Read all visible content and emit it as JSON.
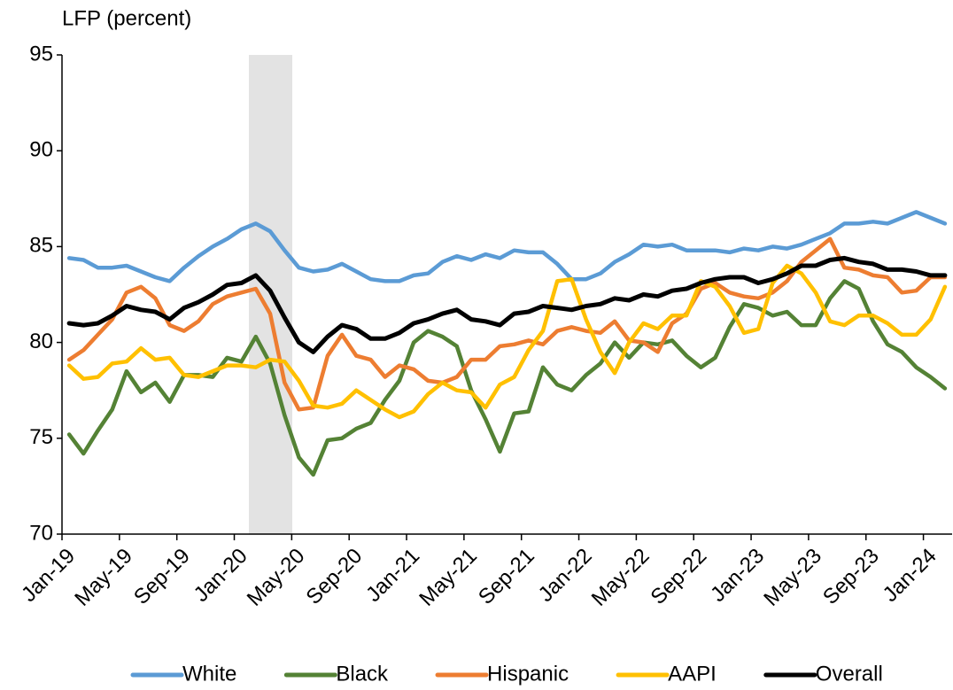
{
  "chart_data": {
    "type": "line",
    "title": "LFP (percent)",
    "categories": [
      "Jan-19",
      null,
      null,
      null,
      "May-19",
      null,
      null,
      null,
      "Sep-19",
      null,
      null,
      null,
      "Jan-20",
      null,
      null,
      null,
      "May-20",
      null,
      null,
      null,
      "Sep-20",
      null,
      null,
      null,
      "Jan-21",
      null,
      null,
      null,
      "May-21",
      null,
      null,
      null,
      "Sep-21",
      null,
      null,
      null,
      "Jan-22",
      null,
      null,
      null,
      "May-22",
      null,
      null,
      null,
      "Sep-22",
      null,
      null,
      null,
      "Jan-23",
      null,
      null,
      null,
      "May-23",
      null,
      null,
      null,
      "Sep-23",
      null,
      null,
      null,
      "Jan-24",
      null
    ],
    "ylim": [
      70,
      95
    ],
    "yticks": [
      70,
      75,
      80,
      85,
      90,
      95
    ],
    "grid": false,
    "legend": "bottom",
    "series": [
      {
        "name": "White",
        "color": "#5b9bd5",
        "values": [
          84.4,
          84.3,
          83.9,
          83.9,
          84.0,
          83.7,
          83.4,
          83.2,
          83.9,
          84.5,
          85.0,
          85.4,
          85.9,
          86.2,
          85.8,
          84.8,
          83.9,
          83.7,
          83.8,
          84.1,
          83.7,
          83.3,
          83.2,
          83.2,
          83.5,
          83.6,
          84.2,
          84.5,
          84.3,
          84.6,
          84.4,
          84.8,
          84.7,
          84.7,
          84.1,
          83.3,
          83.3,
          83.6,
          84.2,
          84.6,
          85.1,
          85.0,
          85.1,
          84.8,
          84.8,
          84.8,
          84.7,
          84.9,
          84.8,
          85.0,
          84.9,
          85.1,
          85.4,
          85.7,
          86.2,
          86.2,
          86.3,
          86.2,
          86.5,
          86.8,
          86.5,
          86.2
        ]
      },
      {
        "name": "Black",
        "color": "#548235",
        "values": [
          75.2,
          74.2,
          75.4,
          76.5,
          78.5,
          77.4,
          77.9,
          76.9,
          78.3,
          78.3,
          78.2,
          79.2,
          79.0,
          80.3,
          78.9,
          76.2,
          74.0,
          73.1,
          74.9,
          75.0,
          75.5,
          75.8,
          77.0,
          78.0,
          80.0,
          80.6,
          80.3,
          79.8,
          77.5,
          76.0,
          74.3,
          76.3,
          76.4,
          78.7,
          77.8,
          77.5,
          78.3,
          78.9,
          80.0,
          79.2,
          80.0,
          79.9,
          80.1,
          79.3,
          78.7,
          79.2,
          80.8,
          82.0,
          81.8,
          81.4,
          81.6,
          80.9,
          80.9,
          82.3,
          83.2,
          82.8,
          81.1,
          79.9,
          79.5,
          78.7,
          78.2,
          77.6
        ]
      },
      {
        "name": "Hispanic",
        "color": "#ed7d31",
        "values": [
          79.1,
          79.6,
          80.4,
          81.2,
          82.6,
          82.9,
          82.3,
          80.9,
          80.6,
          81.1,
          82.0,
          82.4,
          82.6,
          82.8,
          81.5,
          77.9,
          76.5,
          76.6,
          79.3,
          80.4,
          79.3,
          79.1,
          78.2,
          78.8,
          78.6,
          78.0,
          77.9,
          78.2,
          79.1,
          79.1,
          79.8,
          79.9,
          80.1,
          79.9,
          80.6,
          80.8,
          80.6,
          80.5,
          81.1,
          80.1,
          80.0,
          79.5,
          81.0,
          81.5,
          82.8,
          83.1,
          82.6,
          82.4,
          82.3,
          82.6,
          83.2,
          84.2,
          84.8,
          85.4,
          83.9,
          83.8,
          83.5,
          83.4,
          82.6,
          82.7,
          83.4,
          83.4
        ]
      },
      {
        "name": "AAPI",
        "color": "#ffc000",
        "values": [
          78.8,
          78.1,
          78.2,
          78.9,
          79.0,
          79.7,
          79.1,
          79.2,
          78.3,
          78.2,
          78.5,
          78.8,
          78.8,
          78.7,
          79.1,
          79.0,
          78.0,
          76.7,
          76.6,
          76.8,
          77.5,
          77.0,
          76.5,
          76.1,
          76.4,
          77.3,
          77.9,
          77.5,
          77.4,
          76.6,
          77.8,
          78.2,
          79.6,
          80.6,
          83.2,
          83.3,
          81.2,
          79.5,
          78.4,
          80.0,
          81.0,
          80.7,
          81.4,
          81.4,
          83.2,
          82.9,
          81.9,
          80.5,
          80.7,
          83.1,
          84.0,
          83.6,
          82.6,
          81.1,
          80.9,
          81.4,
          81.4,
          81.0,
          80.4,
          80.4,
          81.2,
          82.9
        ]
      },
      {
        "name": "Overall",
        "color": "#000000",
        "values": [
          81.0,
          80.9,
          81.0,
          81.4,
          81.9,
          81.7,
          81.6,
          81.2,
          81.8,
          82.1,
          82.5,
          83.0,
          83.1,
          83.5,
          82.7,
          81.3,
          80.0,
          79.5,
          80.3,
          80.9,
          80.7,
          80.2,
          80.2,
          80.5,
          81.0,
          81.2,
          81.5,
          81.7,
          81.2,
          81.1,
          80.9,
          81.5,
          81.6,
          81.9,
          81.8,
          81.7,
          81.9,
          82.0,
          82.3,
          82.2,
          82.5,
          82.4,
          82.7,
          82.8,
          83.1,
          83.3,
          83.4,
          83.4,
          83.1,
          83.3,
          83.6,
          84.0,
          84.0,
          84.3,
          84.4,
          84.2,
          84.1,
          83.8,
          83.8,
          83.7,
          83.5,
          83.5
        ]
      }
    ]
  }
}
